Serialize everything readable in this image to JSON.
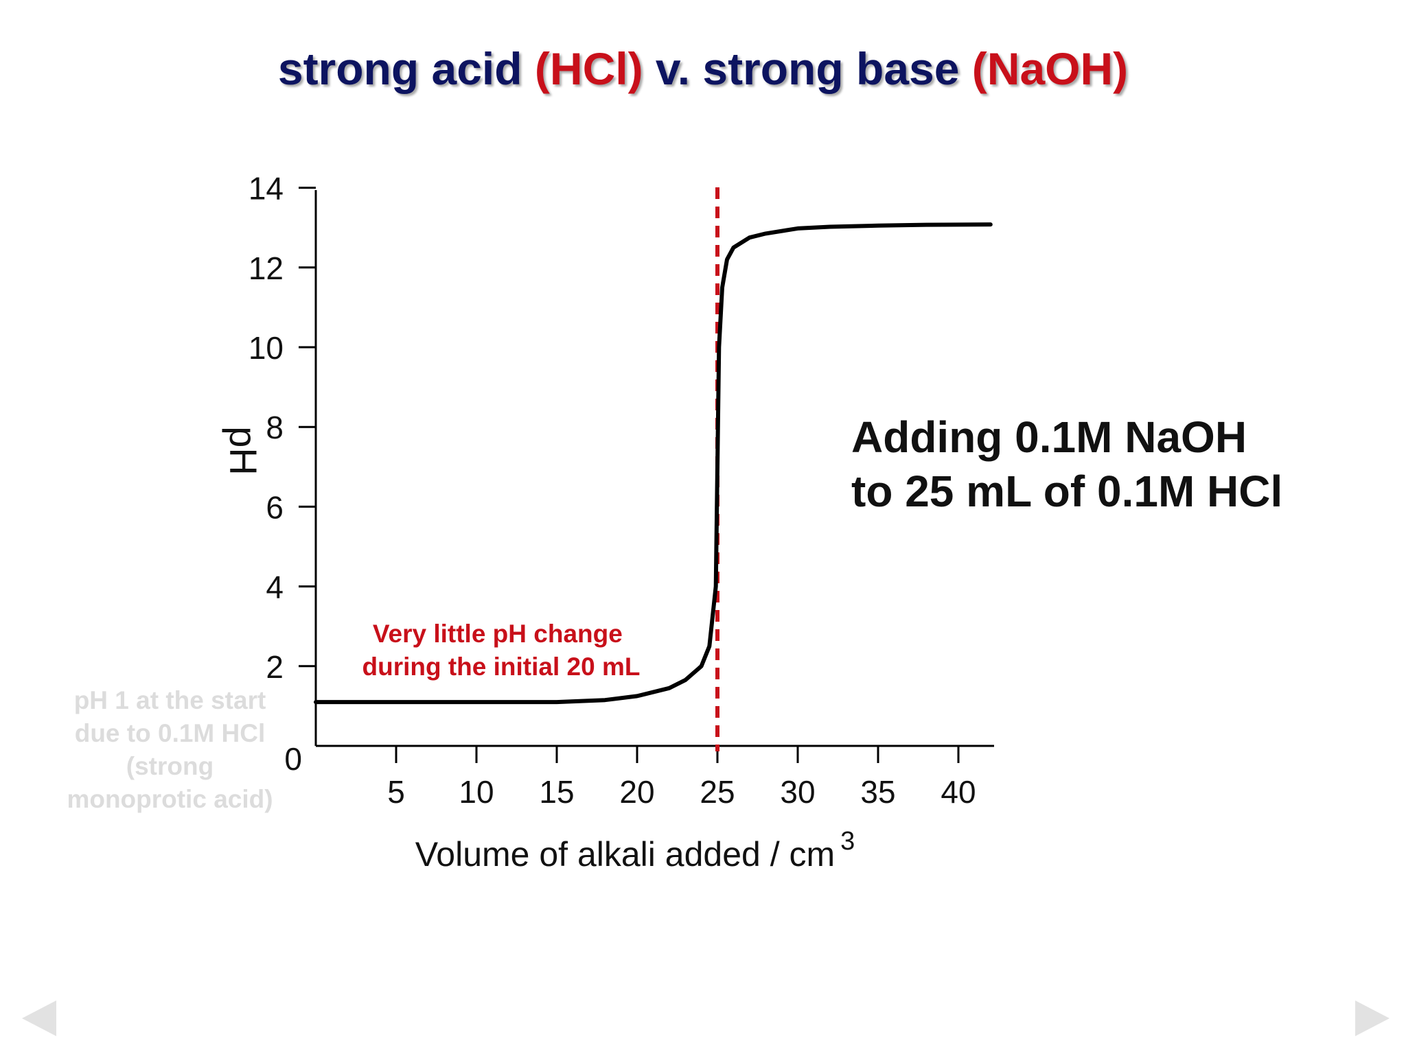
{
  "slide": {
    "title_parts": [
      "strong acid ",
      "(HCl)",
      " v. strong base ",
      "(NaOH)"
    ],
    "colors": {
      "title": "#0d1460",
      "title_accent": "#c8101a"
    }
  },
  "side_note": {
    "line1": "Adding 0.1M NaOH",
    "line2": "to 25 mL of 0.1M HCl"
  },
  "start_note": {
    "lines": [
      "pH 1 at the start",
      "due to 0.1M HCl",
      "(strong",
      "monoprotic acid)"
    ],
    "color": "#dcdcdc"
  },
  "nav": {
    "prev_icon": "triangle-left-icon",
    "next_icon": "triangle-right-icon"
  },
  "chart_data": {
    "type": "line",
    "xlabel": "Volume of alkali added / cm",
    "xlabel_superscript": "3",
    "ylabel": "pH",
    "xlim": [
      0,
      42.5
    ],
    "ylim": [
      0,
      14
    ],
    "x_ticks": [
      5,
      10,
      15,
      20,
      25,
      30,
      35,
      40
    ],
    "y_ticks": [
      0,
      2,
      4,
      6,
      8,
      10,
      12,
      14
    ],
    "grid": false,
    "series": [
      {
        "x": [
          0,
          5,
          10,
          15,
          18,
          20,
          22,
          23,
          24,
          24.5,
          24.9,
          25.0,
          25.1,
          25.3,
          25.6,
          26,
          27,
          28,
          30,
          32,
          35,
          38,
          42
        ],
        "y": [
          1.1,
          1.1,
          1.1,
          1.1,
          1.15,
          1.25,
          1.45,
          1.65,
          2.0,
          2.5,
          4.0,
          7.0,
          10.0,
          11.5,
          12.2,
          12.5,
          12.75,
          12.85,
          12.98,
          13.02,
          13.05,
          13.07,
          13.08
        ],
        "color": "#000000"
      }
    ],
    "equivalence_line": {
      "x": 25,
      "color": "#c8101a",
      "style": "dashed"
    },
    "annotation": {
      "lines": [
        "Very little pH change",
        "during the initial 20 mL"
      ],
      "color": "#c8101a"
    }
  }
}
